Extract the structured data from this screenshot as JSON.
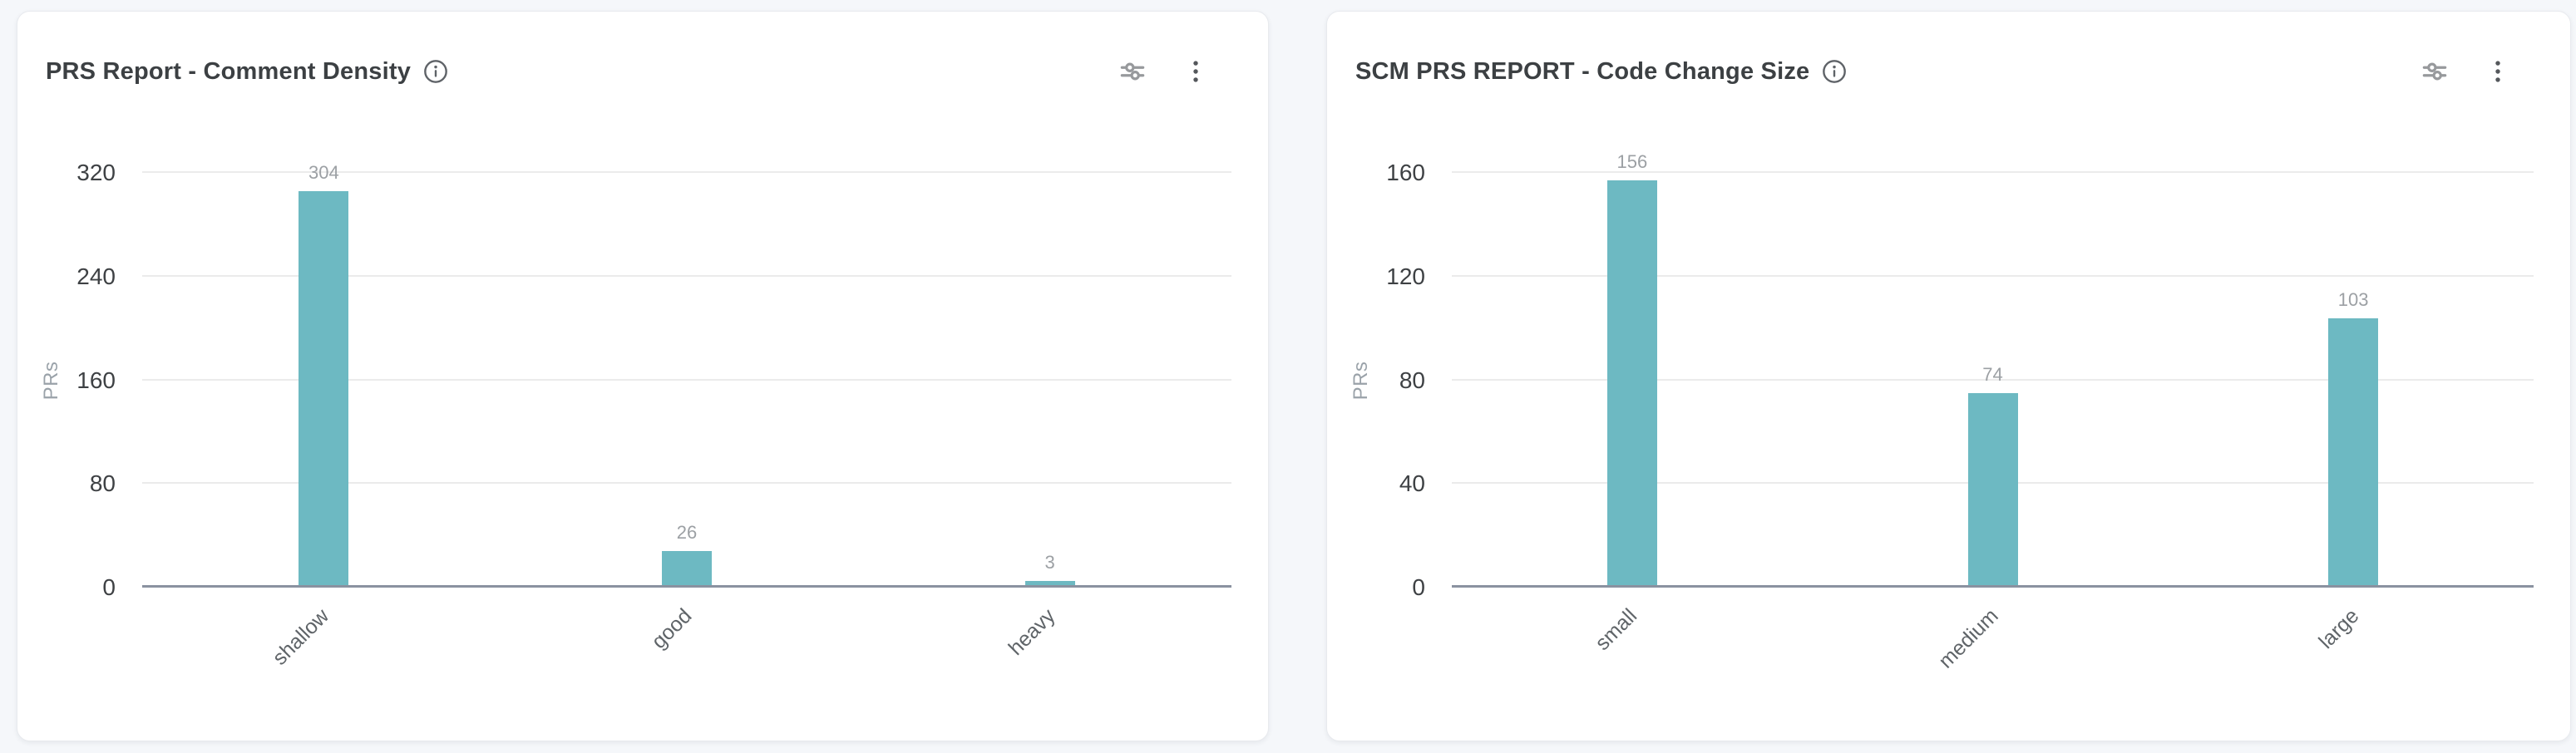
{
  "page": {
    "background": "#f5f7fa"
  },
  "chart_data": [
    {
      "type": "bar",
      "title": "PRS Report - Comment Density",
      "categories": [
        "shallow",
        "good",
        "heavy"
      ],
      "values": [
        304,
        26,
        3
      ],
      "xlabel": "",
      "ylabel": "PRs",
      "ylim": [
        0,
        320
      ],
      "yticks": [
        0,
        80,
        160,
        240,
        320
      ],
      "grid": true,
      "legend": "none",
      "value_labels": true,
      "bar_color": "#6db9c2",
      "axis_color": "#8a92a0",
      "grid_color": "#ebebeb"
    },
    {
      "type": "bar",
      "title": "SCM PRS REPORT - Code Change Size",
      "categories": [
        "small",
        "medium",
        "large"
      ],
      "values": [
        156,
        74,
        103
      ],
      "xlabel": "",
      "ylabel": "PRs",
      "ylim": [
        0,
        160
      ],
      "yticks": [
        0,
        40,
        80,
        120,
        160
      ],
      "grid": true,
      "legend": "none",
      "value_labels": true,
      "bar_color": "#6db9c2",
      "axis_color": "#8a92a0",
      "grid_color": "#ebebeb"
    }
  ],
  "icons": {
    "info": "info-icon",
    "settings": "chart-settings-icon",
    "menu": "kebab-menu-icon"
  }
}
